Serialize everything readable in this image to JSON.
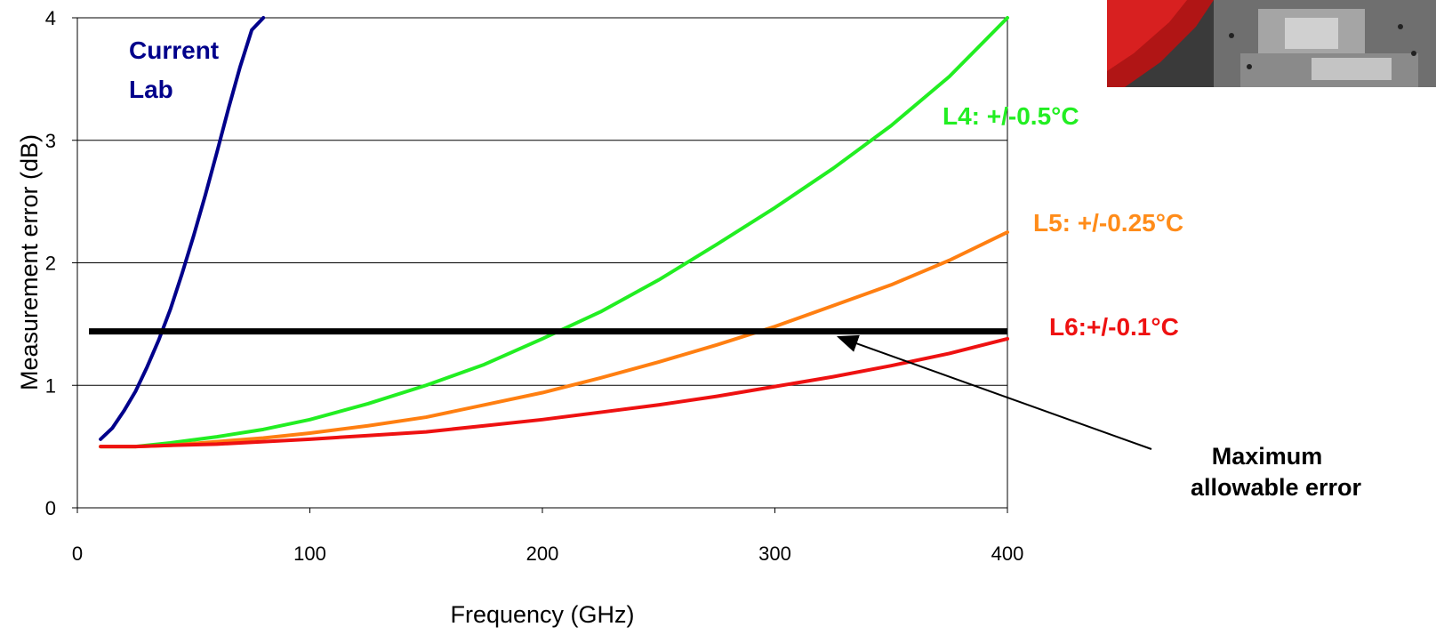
{
  "chart_data": {
    "type": "line",
    "xlabel": "Frequency (GHz)",
    "ylabel": "Measurement error (dB)",
    "xlim": [
      0,
      400
    ],
    "ylim": [
      0,
      4
    ],
    "xticks": [
      "0",
      "100",
      "200",
      "300",
      "400"
    ],
    "yticks": [
      "0",
      "1",
      "2",
      "3",
      "4"
    ],
    "grid": "horizontal",
    "series": [
      {
        "name": "Current Lab",
        "label_lines": [
          "Current",
          "Lab"
        ],
        "color": "#00008b",
        "x": [
          10,
          15,
          20,
          25,
          30,
          35,
          40,
          45,
          50,
          55,
          60,
          65,
          70,
          75,
          80
        ],
        "y": [
          0.56,
          0.65,
          0.79,
          0.95,
          1.15,
          1.37,
          1.62,
          1.91,
          2.22,
          2.55,
          2.9,
          3.26,
          3.6,
          3.9,
          4.0
        ]
      },
      {
        "name": "L4: +/-0.5°C",
        "color": "#22ee22",
        "x": [
          10,
          25,
          40,
          60,
          80,
          100,
          125,
          150,
          175,
          200,
          225,
          250,
          275,
          300,
          325,
          350,
          375,
          400
        ],
        "y": [
          0.5,
          0.5,
          0.53,
          0.58,
          0.64,
          0.72,
          0.85,
          1.0,
          1.17,
          1.38,
          1.6,
          1.86,
          2.15,
          2.45,
          2.77,
          3.12,
          3.52,
          4.0
        ]
      },
      {
        "name": "L5: +/-0.25°C",
        "color": "#ff7f11",
        "x": [
          10,
          25,
          40,
          60,
          80,
          100,
          125,
          150,
          175,
          200,
          225,
          250,
          275,
          300,
          325,
          350,
          375,
          400
        ],
        "y": [
          0.5,
          0.5,
          0.51,
          0.54,
          0.57,
          0.61,
          0.67,
          0.74,
          0.84,
          0.94,
          1.06,
          1.19,
          1.33,
          1.48,
          1.65,
          1.82,
          2.02,
          2.25
        ]
      },
      {
        "name": "L6:+/-0.1°C",
        "color": "#ee1111",
        "x": [
          10,
          25,
          40,
          60,
          80,
          100,
          125,
          150,
          175,
          200,
          225,
          250,
          275,
          300,
          325,
          350,
          375,
          400
        ],
        "y": [
          0.5,
          0.5,
          0.51,
          0.52,
          0.54,
          0.56,
          0.59,
          0.62,
          0.67,
          0.72,
          0.78,
          0.84,
          0.91,
          0.99,
          1.07,
          1.16,
          1.26,
          1.38
        ]
      }
    ],
    "threshold": {
      "y": 1.44,
      "x": [
        5,
        400
      ],
      "color": "#000000",
      "annotation_lines": [
        "Maximum",
        "allowable error"
      ],
      "arrow_target": {
        "x": 328,
        "y": 1.39
      }
    }
  }
}
